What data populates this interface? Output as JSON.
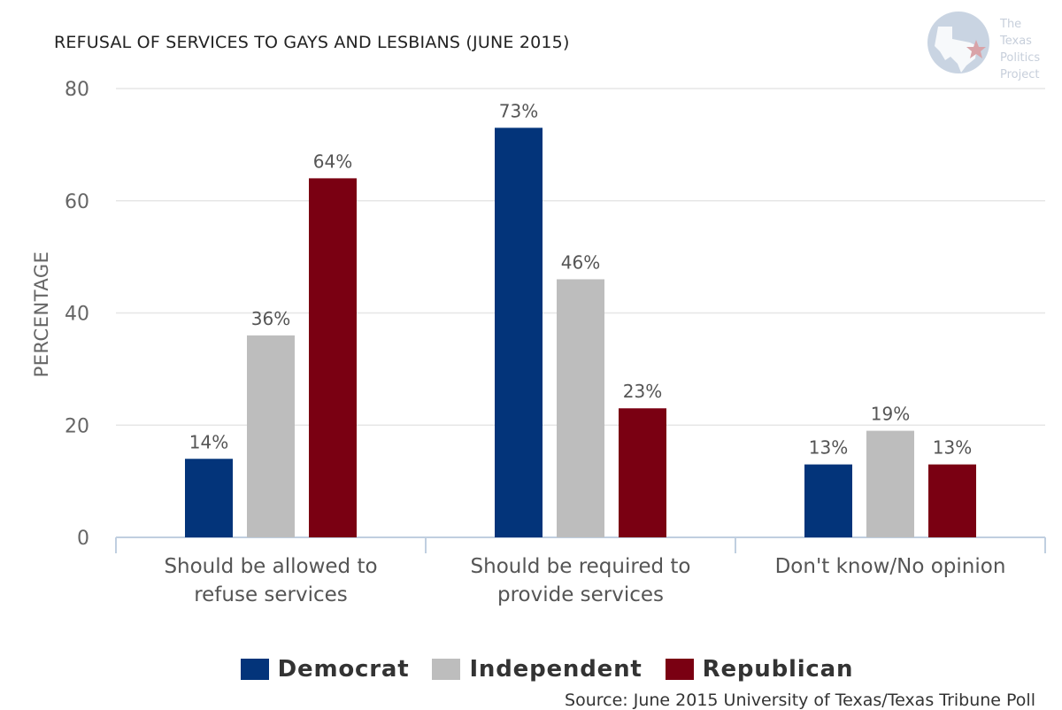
{
  "logo": {
    "lines": [
      "The",
      "Texas",
      "Politics",
      "Project"
    ]
  },
  "chart_data": {
    "type": "bar",
    "title": "REFUSAL OF SERVICES TO GAYS AND LESBIANS (JUNE 2015)",
    "ylabel": "PERCENTAGE",
    "xlabel": "",
    "ylim": [
      0,
      80
    ],
    "yticks": [
      "0",
      "20",
      "40",
      "60",
      "80"
    ],
    "grid": true,
    "legend_position": "bottom",
    "categories": [
      [
        "Should be allowed to",
        "refuse services"
      ],
      [
        "Should be required to",
        "provide services"
      ],
      [
        "Don't know/No opinion"
      ]
    ],
    "series": [
      {
        "name": "Democrat",
        "color": "#03347a",
        "values": [
          14,
          73,
          13
        ],
        "labels": [
          "14%",
          "73%",
          "13%"
        ]
      },
      {
        "name": "Independent",
        "color": "#bdbdbd",
        "values": [
          36,
          46,
          19
        ],
        "labels": [
          "36%",
          "46%",
          "19%"
        ]
      },
      {
        "name": "Republican",
        "color": "#7a0012",
        "values": [
          64,
          23,
          13
        ],
        "labels": [
          "64%",
          "23%",
          "13%"
        ]
      }
    ],
    "source": "Source: June 2015 University of Texas/Texas Tribune Poll"
  }
}
